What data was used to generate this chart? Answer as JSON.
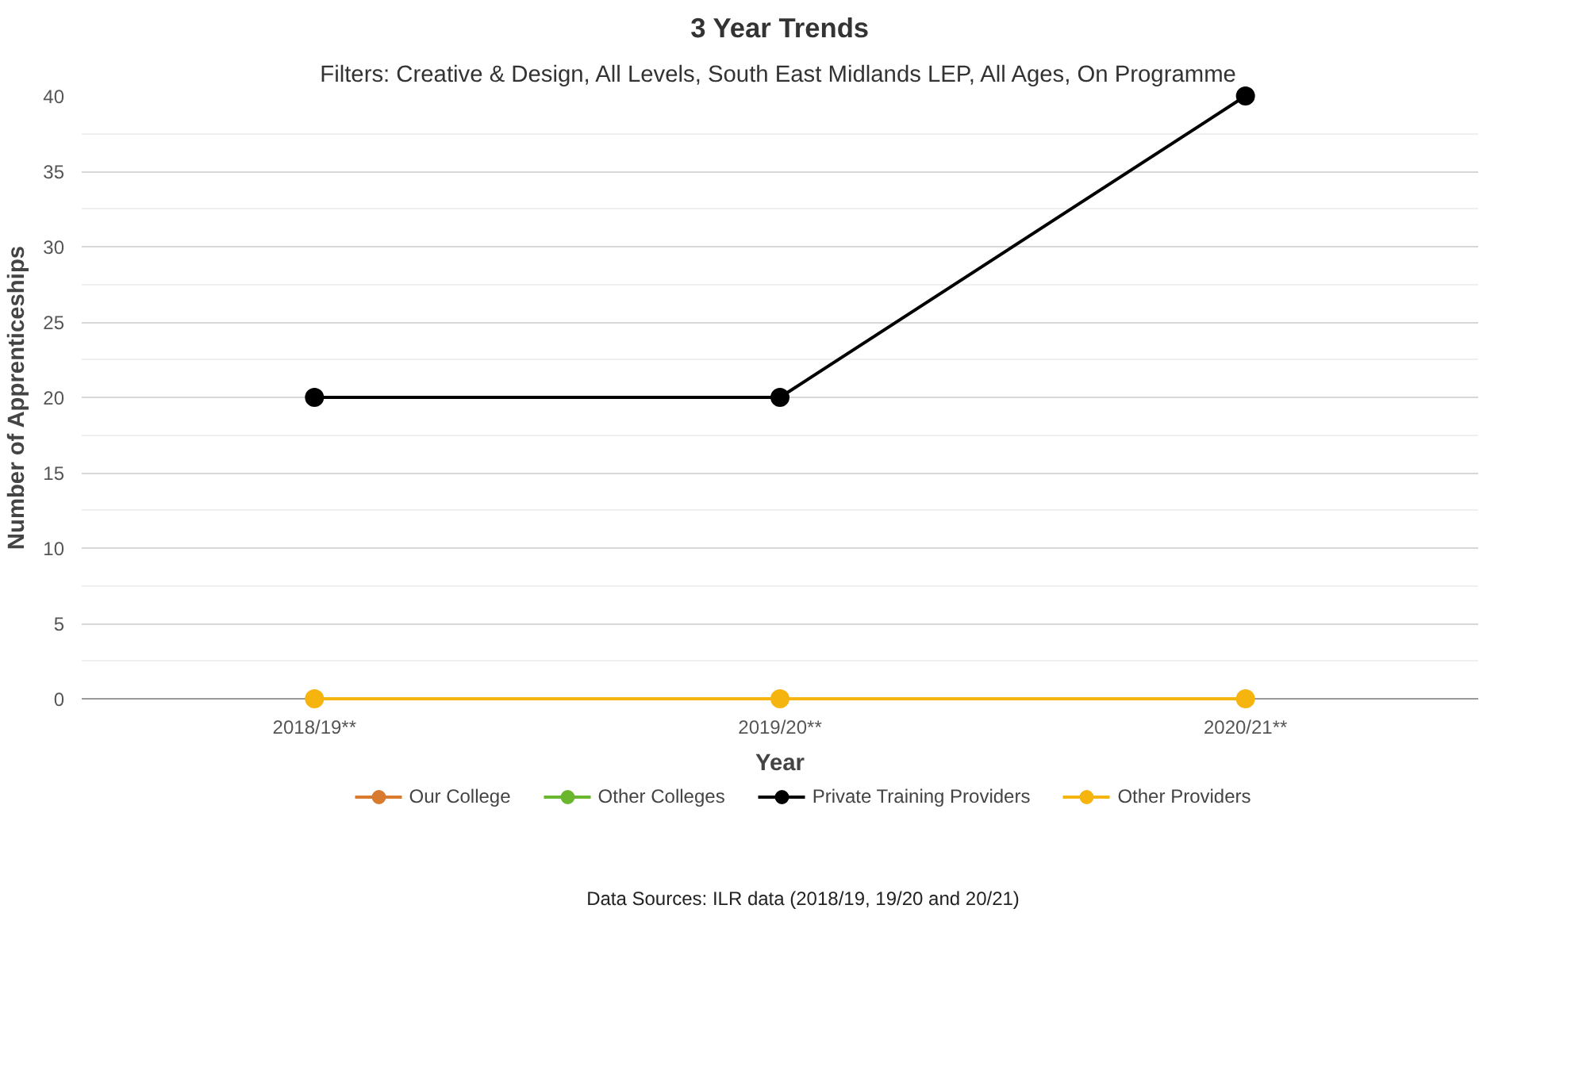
{
  "chart_data": {
    "type": "line",
    "title": "3 Year Trends",
    "subtitle": "Filters: Creative & Design, All Levels, South East Midlands LEP, All Ages, On Programme",
    "xlabel": "Year",
    "ylabel": "Number of Apprenticeships",
    "categories": [
      "2018/19**",
      "2019/20**",
      "2020/21**"
    ],
    "series": [
      {
        "name": "Our College",
        "color": "#d97b2e",
        "values": [
          null,
          null,
          null
        ]
      },
      {
        "name": "Other Colleges",
        "color": "#6ab72e",
        "values": [
          null,
          null,
          null
        ]
      },
      {
        "name": "Private Training Providers",
        "color": "#000000",
        "values": [
          20,
          20,
          40
        ]
      },
      {
        "name": "Other Providers",
        "color": "#f6b40e",
        "values": [
          0,
          0,
          0
        ]
      }
    ],
    "ylim": [
      0,
      40
    ],
    "yticks": [
      0,
      {
        "value": 2.5,
        "label": null
      },
      5,
      {
        "value": 7.5,
        "label": null
      },
      10,
      {
        "value": 12.5,
        "label": null
      },
      15,
      {
        "value": 17.5,
        "label": null
      },
      20,
      {
        "value": 22.5,
        "label": null
      },
      25,
      {
        "value": 27.5,
        "label": null
      },
      30,
      {
        "value": 32.5,
        "label": null
      },
      35,
      {
        "value": 37.5,
        "label": null
      },
      40
    ],
    "grid": "y",
    "legend": "bottom",
    "marker": "circle",
    "line_style": "solid",
    "annotations": [
      "Data Sources: ILR data (2018/19, 19/20 and 20/21)"
    ]
  }
}
